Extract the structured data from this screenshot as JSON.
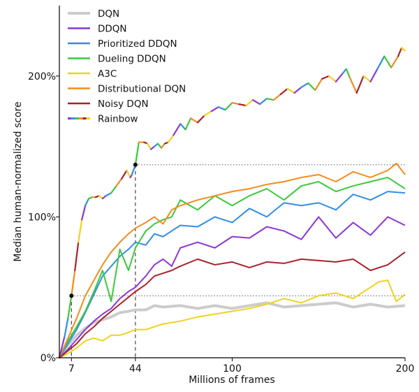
{
  "chart_data": {
    "type": "line",
    "xlabel": "Millions of frames",
    "ylabel": "Median human-normalized score",
    "xlim": [
      0,
      200
    ],
    "ylim": [
      0,
      2.5
    ],
    "xticks": [
      7,
      44,
      100,
      200
    ],
    "xtick_labels": [
      "7",
      "44",
      "100",
      "200"
    ],
    "yticks": [
      0,
      1,
      2
    ],
    "ytick_labels": [
      "0%",
      "100%",
      "200%"
    ],
    "legend_position": "top-left",
    "annotations": {
      "markers": [
        {
          "x": 7,
          "y": 0.44
        },
        {
          "x": 44,
          "y": 1.37
        }
      ],
      "reference_levels": [
        0.44,
        1.37
      ]
    },
    "series": [
      {
        "name": "DQN",
        "color": "#cccccc",
        "x": [
          0,
          5,
          10,
          15,
          20,
          25,
          30,
          35,
          40,
          44,
          50,
          55,
          60,
          70,
          80,
          90,
          100,
          110,
          120,
          130,
          140,
          150,
          160,
          170,
          180,
          190,
          200
        ],
        "y": [
          0,
          0.09,
          0.16,
          0.21,
          0.25,
          0.27,
          0.29,
          0.32,
          0.33,
          0.34,
          0.34,
          0.37,
          0.36,
          0.37,
          0.35,
          0.37,
          0.35,
          0.37,
          0.39,
          0.36,
          0.37,
          0.38,
          0.39,
          0.36,
          0.38,
          0.36,
          0.37
        ]
      },
      {
        "name": "DDQN",
        "color": "#8e36d6",
        "x": [
          0,
          5,
          10,
          15,
          20,
          25,
          30,
          35,
          40,
          44,
          50,
          55,
          60,
          65,
          70,
          80,
          90,
          100,
          110,
          120,
          130,
          140,
          150,
          160,
          170,
          180,
          190,
          200
        ],
        "y": [
          0,
          0.06,
          0.13,
          0.2,
          0.26,
          0.31,
          0.35,
          0.42,
          0.47,
          0.5,
          0.58,
          0.66,
          0.7,
          0.65,
          0.78,
          0.82,
          0.78,
          0.86,
          0.85,
          0.93,
          0.9,
          0.84,
          1.0,
          0.85,
          0.96,
          0.87,
          1.0,
          0.94
        ]
      },
      {
        "name": "Prioritized DDQN",
        "color": "#2f8ee6",
        "x": [
          0,
          5,
          10,
          15,
          20,
          25,
          30,
          35,
          40,
          44,
          50,
          55,
          60,
          65,
          70,
          80,
          90,
          100,
          110,
          120,
          130,
          140,
          150,
          160,
          170,
          180,
          190,
          200
        ],
        "y": [
          0,
          0.1,
          0.2,
          0.32,
          0.45,
          0.58,
          0.65,
          0.72,
          0.77,
          0.82,
          0.8,
          0.88,
          0.86,
          0.9,
          0.94,
          0.93,
          1.0,
          0.96,
          1.06,
          1.0,
          1.1,
          1.08,
          1.1,
          1.05,
          1.16,
          1.12,
          1.18,
          1.17
        ]
      },
      {
        "name": "Dueling DDQN",
        "color": "#3cc83c",
        "x": [
          0,
          5,
          10,
          15,
          20,
          25,
          30,
          35,
          40,
          44,
          50,
          55,
          60,
          65,
          70,
          80,
          90,
          100,
          110,
          120,
          130,
          140,
          150,
          160,
          170,
          180,
          190,
          200
        ],
        "y": [
          0,
          0.12,
          0.22,
          0.33,
          0.47,
          0.62,
          0.4,
          0.77,
          0.62,
          0.78,
          0.9,
          0.95,
          0.98,
          1.0,
          1.12,
          1.05,
          1.15,
          1.08,
          1.15,
          1.2,
          1.12,
          1.22,
          1.25,
          1.18,
          1.22,
          1.25,
          1.28,
          1.2
        ]
      },
      {
        "name": "A3C",
        "color": "#f0d21e",
        "x": [
          0,
          5,
          10,
          15,
          20,
          25,
          30,
          35,
          40,
          44,
          50,
          60,
          70,
          80,
          90,
          100,
          110,
          120,
          130,
          140,
          150,
          160,
          170,
          180,
          185,
          190,
          195,
          200
        ],
        "y": [
          0,
          0.03,
          0.07,
          0.12,
          0.14,
          0.12,
          0.16,
          0.16,
          0.18,
          0.2,
          0.2,
          0.24,
          0.26,
          0.29,
          0.31,
          0.33,
          0.35,
          0.38,
          0.42,
          0.39,
          0.44,
          0.46,
          0.42,
          0.5,
          0.54,
          0.55,
          0.4,
          0.45
        ]
      },
      {
        "name": "Distributional DQN",
        "color": "#f28c1e",
        "x": [
          0,
          5,
          10,
          15,
          20,
          25,
          30,
          35,
          40,
          44,
          50,
          55,
          60,
          65,
          70,
          80,
          90,
          100,
          110,
          120,
          130,
          140,
          150,
          160,
          170,
          180,
          190,
          195,
          200
        ],
        "y": [
          0,
          0.14,
          0.28,
          0.44,
          0.55,
          0.66,
          0.75,
          0.82,
          0.88,
          0.92,
          0.96,
          1.0,
          0.95,
          1.05,
          1.08,
          1.12,
          1.15,
          1.18,
          1.2,
          1.23,
          1.25,
          1.28,
          1.3,
          1.25,
          1.32,
          1.28,
          1.33,
          1.38,
          1.3
        ]
      },
      {
        "name": "Noisy DQN",
        "color": "#a8232d",
        "x": [
          0,
          5,
          10,
          15,
          20,
          25,
          30,
          35,
          40,
          44,
          50,
          55,
          60,
          65,
          70,
          80,
          90,
          100,
          110,
          120,
          130,
          140,
          150,
          160,
          170,
          180,
          190,
          200
        ],
        "y": [
          0,
          0.05,
          0.1,
          0.17,
          0.22,
          0.28,
          0.33,
          0.38,
          0.43,
          0.47,
          0.52,
          0.58,
          0.6,
          0.62,
          0.65,
          0.7,
          0.66,
          0.68,
          0.64,
          0.68,
          0.67,
          0.7,
          0.69,
          0.68,
          0.7,
          0.62,
          0.66,
          0.75
        ]
      },
      {
        "name": "Rainbow",
        "color": "multicolor",
        "x": [
          0,
          3,
          5,
          7,
          9,
          11,
          13,
          15,
          17,
          19,
          21,
          23,
          25,
          27,
          30,
          33,
          36,
          39,
          41,
          42,
          44,
          46,
          49,
          51,
          53,
          55,
          57,
          59,
          61,
          63,
          66,
          70,
          73,
          76,
          80,
          84,
          88,
          92,
          96,
          100,
          104,
          108,
          112,
          116,
          120,
          124,
          128,
          132,
          136,
          140,
          144,
          148,
          152,
          156,
          160,
          164,
          166,
          168,
          172,
          176,
          180,
          184,
          188,
          192,
          196,
          198,
          200
        ],
        "y": [
          0,
          0.15,
          0.28,
          0.44,
          0.62,
          0.82,
          0.98,
          1.08,
          1.13,
          1.14,
          1.14,
          1.15,
          1.13,
          1.15,
          1.17,
          1.22,
          1.27,
          1.33,
          1.28,
          1.3,
          1.37,
          1.53,
          1.53,
          1.52,
          1.48,
          1.5,
          1.52,
          1.49,
          1.52,
          1.53,
          1.58,
          1.66,
          1.62,
          1.7,
          1.67,
          1.72,
          1.75,
          1.78,
          1.76,
          1.81,
          1.8,
          1.79,
          1.83,
          1.8,
          1.84,
          1.83,
          1.87,
          1.91,
          1.88,
          1.92,
          1.95,
          1.9,
          1.98,
          2.0,
          1.96,
          2.02,
          2.05,
          1.99,
          1.88,
          2.0,
          1.96,
          2.05,
          2.14,
          2.06,
          2.14,
          2.2,
          2.18
        ]
      }
    ]
  }
}
